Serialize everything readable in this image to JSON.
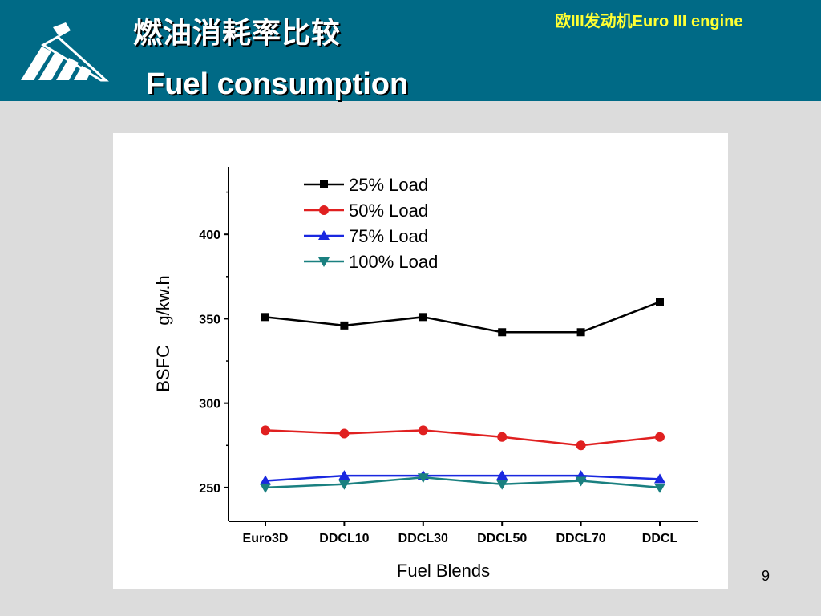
{
  "header": {
    "title_cn": "燃油消耗率比较",
    "title_en": "Fuel consumption",
    "engine_label": "欧III发动机Euro III engine",
    "logo_icon": "company-logo-icon"
  },
  "colors": {
    "header_bg": "#006a86",
    "engine_label": "#ffff33",
    "series_25": "#000000",
    "series_50": "#e02020",
    "series_75": "#1a28e0",
    "series_100": "#1a8080"
  },
  "page_number": "9",
  "chart_data": {
    "type": "line",
    "categories": [
      "Euro3D",
      "DDCL10",
      "DDCL30",
      "DDCL50",
      "DDCL70",
      "DDCL"
    ],
    "series": [
      {
        "name": "25% Load",
        "marker": "square",
        "values": [
          351,
          346,
          351,
          342,
          342,
          360
        ]
      },
      {
        "name": "50% Load",
        "marker": "circle",
        "values": [
          284,
          282,
          284,
          280,
          275,
          280
        ]
      },
      {
        "name": "75% Load",
        "marker": "triangle-up",
        "values": [
          254,
          257,
          257,
          257,
          257,
          255
        ]
      },
      {
        "name": "100% Load",
        "marker": "triangle-down",
        "values": [
          250,
          252,
          256,
          252,
          254,
          250
        ]
      }
    ],
    "xlabel": "Fuel Blends",
    "ylabel": "BSFC    g/kw.h",
    "ylim": [
      230,
      440
    ],
    "yticks": [
      250,
      300,
      350,
      400
    ],
    "grid": false,
    "legend_position": "top-center"
  }
}
